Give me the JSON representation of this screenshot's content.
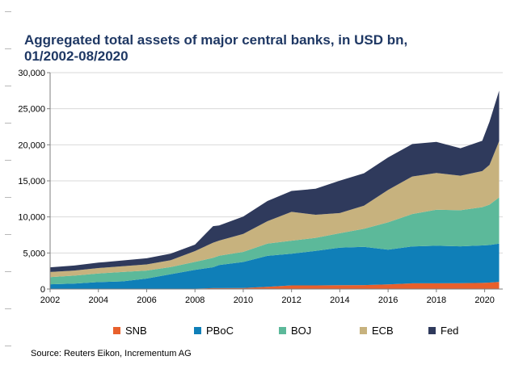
{
  "title_lines": [
    "Aggregated total assets of major central banks, in USD bn,",
    "01/2002-08/2020"
  ],
  "source": "Source: Reuters Eikon, Incrementum AG",
  "chart_data": {
    "type": "area",
    "stacked": true,
    "title": "Aggregated total assets of major central banks, in USD bn, 01/2002-08/2020",
    "ylim": [
      0,
      30000
    ],
    "xlim": [
      2002,
      2020.75
    ],
    "yticks": [
      0,
      5000,
      10000,
      15000,
      20000,
      25000,
      30000
    ],
    "ytick_labels": [
      "0",
      "5,000",
      "10,000",
      "15,000",
      "20,000",
      "25,000",
      "30,000"
    ],
    "xticks": [
      2002,
      2004,
      2006,
      2008,
      2010,
      2012,
      2014,
      2016,
      2018,
      2020
    ],
    "xtick_labels": [
      "2002",
      "2004",
      "2006",
      "2008",
      "2010",
      "2012",
      "2014",
      "2016",
      "2018",
      "2020"
    ],
    "legend_position": "bottom",
    "x": [
      2002,
      2003,
      2004,
      2005,
      2006,
      2007,
      2008,
      2008.75,
      2009,
      2010,
      2011,
      2012,
      2013,
      2014,
      2015,
      2016,
      2017,
      2018,
      2019,
      2019.9,
      2020.2,
      2020.6
    ],
    "series": [
      {
        "name": "SNB",
        "color": "#e8602c",
        "values": [
          60,
          60,
          60,
          60,
          60,
          60,
          60,
          120,
          120,
          150,
          300,
          500,
          500,
          530,
          550,
          650,
          800,
          800,
          820,
          850,
          900,
          1000
        ]
      },
      {
        "name": "PBoC",
        "color": "#0f7fb8",
        "values": [
          600,
          700,
          900,
          1000,
          1400,
          2000,
          2600,
          2900,
          3200,
          3600,
          4300,
          4400,
          4800,
          5200,
          5300,
          4800,
          5100,
          5200,
          5100,
          5200,
          5200,
          5300
        ]
      },
      {
        "name": "BOJ",
        "color": "#5cb99a",
        "values": [
          1000,
          1100,
          1200,
          1300,
          1100,
          1000,
          1100,
          1300,
          1300,
          1400,
          1700,
          1800,
          1800,
          2000,
          2500,
          3800,
          4500,
          5000,
          5000,
          5300,
          5600,
          6400
        ]
      },
      {
        "name": "ECB",
        "color": "#c7b27e",
        "values": [
          700,
          700,
          750,
          800,
          850,
          950,
          1500,
          2100,
          2100,
          2500,
          3100,
          4000,
          3200,
          2800,
          3200,
          4500,
          5200,
          5100,
          4800,
          5000,
          5500,
          7800
        ]
      },
      {
        "name": "Fed",
        "color": "#2f3a5c",
        "values": [
          650,
          700,
          750,
          800,
          850,
          900,
          900,
          2300,
          2100,
          2400,
          2800,
          2900,
          3600,
          4500,
          4500,
          4500,
          4500,
          4300,
          3800,
          4200,
          6000,
          7000
        ]
      }
    ]
  }
}
